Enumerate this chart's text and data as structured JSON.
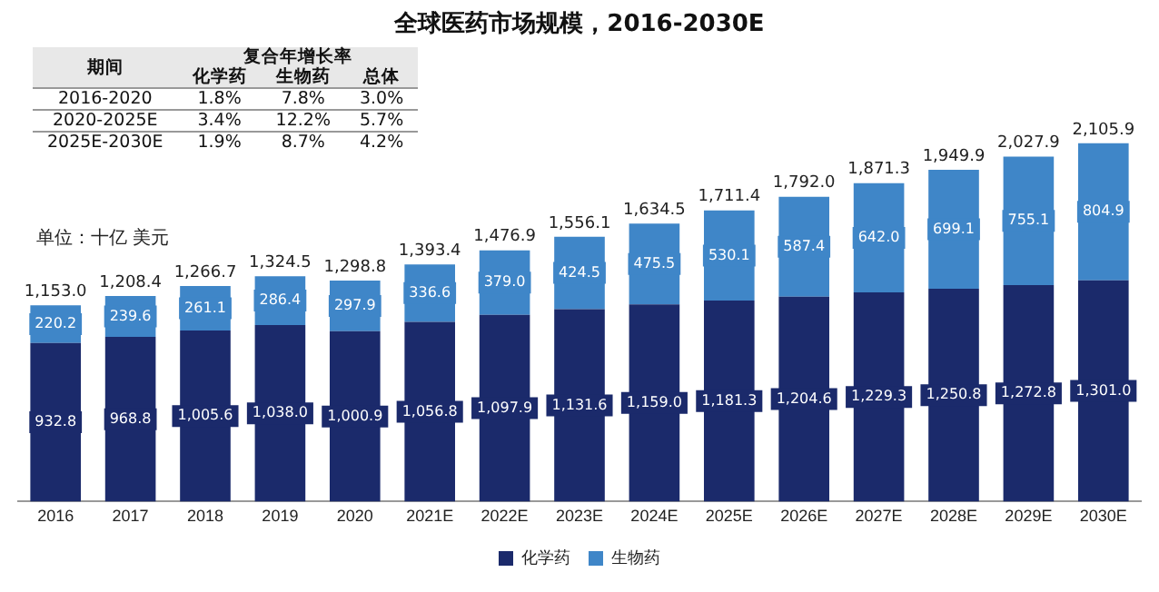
{
  "chart_data": [
    {
      "type": "bar",
      "title": "全球医药市场规模，2016-2030E",
      "categories": [
        "2016",
        "2017",
        "2018",
        "2019",
        "2020",
        "2021E",
        "2022E",
        "2023E",
        "2024E",
        "2025E",
        "2026E",
        "2027E",
        "2028E",
        "2029E",
        "2030E"
      ],
      "series": [
        {
          "name": "化学药",
          "color": "#1b2a6b",
          "values": [
            932.8,
            968.8,
            1005.6,
            1038.0,
            1000.9,
            1056.8,
            1097.9,
            1131.6,
            1159.0,
            1181.3,
            1204.6,
            1229.3,
            1250.8,
            1272.8,
            1301.0
          ],
          "value_labels": [
            "932.8",
            "968.8",
            "1,005.6",
            "1,038.0",
            "1,000.9",
            "1,056.8",
            "1,097.9",
            "1,131.6",
            "1,159.0",
            "1,181.3",
            "1,204.6",
            "1,229.3",
            "1,250.8",
            "1,272.8",
            "1,301.0"
          ]
        },
        {
          "name": "生物药",
          "color": "#3f86c8",
          "values": [
            220.2,
            239.6,
            261.1,
            286.4,
            297.9,
            336.6,
            379.0,
            424.5,
            475.5,
            530.1,
            587.4,
            642.0,
            699.1,
            755.1,
            804.9
          ],
          "value_labels": [
            "220.2",
            "239.6",
            "261.1",
            "286.4",
            "297.9",
            "336.6",
            "379.0",
            "424.5",
            "475.5",
            "530.1",
            "587.4",
            "642.0",
            "699.1",
            "755.1",
            "804.9"
          ]
        }
      ],
      "stacked": true,
      "totals": [
        "1,153.0",
        "1,208.4",
        "1,266.7",
        "1,324.5",
        "1,298.8",
        "1,393.4",
        "1,476.9",
        "1,556.1",
        "1,634.5",
        "1,711.4",
        "1,792.0",
        "1,871.3",
        "1,949.9",
        "2,027.9",
        "2,105.9"
      ],
      "annotations": [
        "单位：十亿 美元"
      ],
      "legend": "bottom",
      "grid": false
    },
    {
      "type": "other",
      "annotations": [
        "期间",
        "复合年增长率",
        "化学药",
        "生物药",
        "总体",
        "2016-2020",
        "1.8%",
        "7.8%",
        "3.0%",
        "2020-2025E",
        "3.4%",
        "12.2%",
        "5.7%",
        "2025E-2030E",
        "1.9%",
        "8.7%",
        "4.2%"
      ]
    }
  ]
}
